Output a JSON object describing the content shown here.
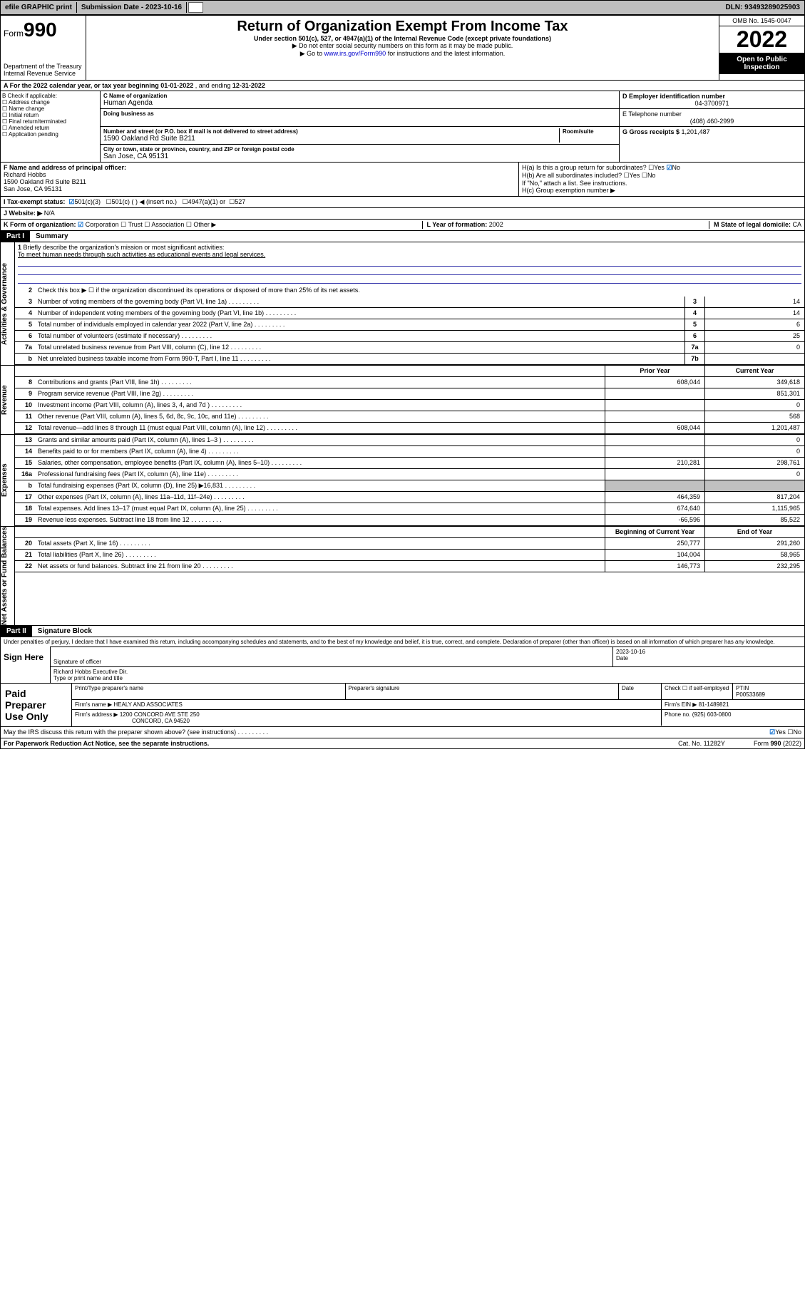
{
  "topbar": {
    "efile": "efile GRAPHIC print",
    "subdate_label": "Submission Date - ",
    "subdate": "2023-10-16",
    "dln": "DLN: 93493289025903"
  },
  "header": {
    "form_label": "Form",
    "form_num": "990",
    "dept": "Department of the Treasury",
    "irs": "Internal Revenue Service",
    "title": "Return of Organization Exempt From Income Tax",
    "subtitle": "Under section 501(c), 527, or 4947(a)(1) of the Internal Revenue Code (except private foundations)",
    "note1": "▶ Do not enter social security numbers on this form as it may be made public.",
    "note2_pre": "▶ Go to ",
    "note2_link": "www.irs.gov/Form990",
    "note2_post": " for instructions and the latest information.",
    "omb": "OMB No. 1545-0047",
    "year": "2022",
    "open": "Open to Public Inspection"
  },
  "period": {
    "a": "A For the 2022 calendar year, or tax year beginning ",
    "begin": "01-01-2022",
    "mid": " , and ending ",
    "end": "12-31-2022"
  },
  "blockB": {
    "title": "B Check if applicable:",
    "items": [
      "Address change",
      "Name change",
      "Initial return",
      "Final return/terminated",
      "Amended return",
      "Application pending"
    ]
  },
  "blockC": {
    "name_label": "C Name of organization",
    "name": "Human Agenda",
    "dba_label": "Doing business as",
    "addr_label": "Number and street (or P.O. box if mail is not delivered to street address)",
    "room_label": "Room/suite",
    "addr": "1590 Oakland Rd Suite B211",
    "city_label": "City or town, state or province, country, and ZIP or foreign postal code",
    "city": "San Jose, CA  95131"
  },
  "blockDE": {
    "d_label": "D Employer identification number",
    "d": "04-3700971",
    "e_label": "E Telephone number",
    "e": "(408) 460-2999",
    "g_label": "G Gross receipts $ ",
    "g": "1,201,487"
  },
  "blockF": {
    "label": "F Name and address of principal officer:",
    "name": "Richard Hobbs",
    "addr1": "1590 Oakland Rd Suite B211",
    "addr2": "San Jose, CA  95131"
  },
  "blockH": {
    "a": "H(a)  Is this a group return for subordinates?",
    "a_yes": "Yes",
    "a_no": "No",
    "b": "H(b)  Are all subordinates included?",
    "b_yes": "Yes",
    "b_no": "No",
    "b_note": "If \"No,\" attach a list. See instructions.",
    "c": "H(c)  Group exemption number ▶"
  },
  "status": {
    "i": "I  Tax-exempt status:",
    "c3": "501(c)(3)",
    "c": "501(c) (   ) ◀ (insert no.)",
    "a4947": "4947(a)(1) or",
    "s527": "527"
  },
  "web": {
    "j": "J  Website: ▶",
    "val": "N/A"
  },
  "korg": {
    "k": "K Form of organization:",
    "corp": "Corporation",
    "trust": "Trust",
    "assoc": "Association",
    "other": "Other ▶",
    "l": "L Year of formation: ",
    "l_val": "2002",
    "m": "M State of legal domicile: ",
    "m_val": "CA"
  },
  "part1": {
    "hdr": "Part I",
    "title": "Summary",
    "q1": "Briefly describe the organization's mission or most significant activities:",
    "q1_ans": "To meet human needs through such activities as educational events and legal services.",
    "q2": "Check this box ▶ ☐  if the organization discontinued its operations or disposed of more than 25% of its net assets.",
    "vtab_ag": "Activities & Governance",
    "vtab_rev": "Revenue",
    "vtab_exp": "Expenses",
    "vtab_na": "Net Assets or Fund Balances",
    "prior_hdr": "Prior Year",
    "curr_hdr": "Current Year",
    "boc_hdr": "Beginning of Current Year",
    "eoy_hdr": "End of Year",
    "rows_ag": [
      {
        "n": "3",
        "d": "Number of voting members of the governing body (Part VI, line 1a)",
        "ln": "3",
        "v": "14"
      },
      {
        "n": "4",
        "d": "Number of independent voting members of the governing body (Part VI, line 1b)",
        "ln": "4",
        "v": "14"
      },
      {
        "n": "5",
        "d": "Total number of individuals employed in calendar year 2022 (Part V, line 2a)",
        "ln": "5",
        "v": "6"
      },
      {
        "n": "6",
        "d": "Total number of volunteers (estimate if necessary)",
        "ln": "6",
        "v": "25"
      },
      {
        "n": "7a",
        "d": "Total unrelated business revenue from Part VIII, column (C), line 12",
        "ln": "7a",
        "v": "0"
      },
      {
        "n": "b",
        "d": "Net unrelated business taxable income from Form 990-T, Part I, line 11",
        "ln": "7b",
        "v": ""
      }
    ],
    "rows_rev": [
      {
        "n": "8",
        "d": "Contributions and grants (Part VIII, line 1h)",
        "p": "608,044",
        "c": "349,618"
      },
      {
        "n": "9",
        "d": "Program service revenue (Part VIII, line 2g)",
        "p": "",
        "c": "851,301"
      },
      {
        "n": "10",
        "d": "Investment income (Part VIII, column (A), lines 3, 4, and 7d )",
        "p": "",
        "c": "0"
      },
      {
        "n": "11",
        "d": "Other revenue (Part VIII, column (A), lines 5, 6d, 8c, 9c, 10c, and 11e)",
        "p": "",
        "c": "568"
      },
      {
        "n": "12",
        "d": "Total revenue—add lines 8 through 11 (must equal Part VIII, column (A), line 12)",
        "p": "608,044",
        "c": "1,201,487"
      }
    ],
    "rows_exp": [
      {
        "n": "13",
        "d": "Grants and similar amounts paid (Part IX, column (A), lines 1–3 )",
        "p": "",
        "c": "0"
      },
      {
        "n": "14",
        "d": "Benefits paid to or for members (Part IX, column (A), line 4)",
        "p": "",
        "c": "0"
      },
      {
        "n": "15",
        "d": "Salaries, other compensation, employee benefits (Part IX, column (A), lines 5–10)",
        "p": "210,281",
        "c": "298,761"
      },
      {
        "n": "16a",
        "d": "Professional fundraising fees (Part IX, column (A), line 11e)",
        "p": "",
        "c": "0"
      },
      {
        "n": "b",
        "d": "Total fundraising expenses (Part IX, column (D), line 25) ▶16,831",
        "p": "shade",
        "c": "shade"
      },
      {
        "n": "17",
        "d": "Other expenses (Part IX, column (A), lines 11a–11d, 11f–24e)",
        "p": "464,359",
        "c": "817,204"
      },
      {
        "n": "18",
        "d": "Total expenses. Add lines 13–17 (must equal Part IX, column (A), line 25)",
        "p": "674,640",
        "c": "1,115,965"
      },
      {
        "n": "19",
        "d": "Revenue less expenses. Subtract line 18 from line 12",
        "p": "-66,596",
        "c": "85,522"
      }
    ],
    "rows_na": [
      {
        "n": "20",
        "d": "Total assets (Part X, line 16)",
        "p": "250,777",
        "c": "291,260"
      },
      {
        "n": "21",
        "d": "Total liabilities (Part X, line 26)",
        "p": "104,004",
        "c": "58,965"
      },
      {
        "n": "22",
        "d": "Net assets or fund balances. Subtract line 21 from line 20",
        "p": "146,773",
        "c": "232,295"
      }
    ]
  },
  "part2": {
    "hdr": "Part II",
    "title": "Signature Block",
    "decl": "Under penalties of perjury, I declare that I have examined this return, including accompanying schedules and statements, and to the best of my knowledge and belief, it is true, correct, and complete. Declaration of preparer (other than officer) is based on all information of which preparer has any knowledge.",
    "sign_here": "Sign Here",
    "sig_officer": "Signature of officer",
    "sig_date": "Date",
    "sig_date_val": "2023-10-16",
    "sig_name": "Richard Hobbs  Executive Dir.",
    "sig_name_label": "Type or print name and title",
    "prep_label": "Paid Preparer Use Only",
    "prep_name_label": "Print/Type preparer's name",
    "prep_sig_label": "Preparer's signature",
    "prep_date_label": "Date",
    "prep_check": "Check ☐ if self-employed",
    "ptin_label": "PTIN",
    "ptin": "P00533689",
    "firm_name_label": "Firm's name   ▶",
    "firm_name": "HEALY AND ASSOCIATES",
    "firm_ein_label": "Firm's EIN ▶",
    "firm_ein": "81-1489821",
    "firm_addr_label": "Firm's address ▶",
    "firm_addr": "1200 CONCORD AVE STE 250",
    "firm_city": "CONCORD, CA  94520",
    "phone_label": "Phone no.",
    "phone": "(925) 603-0800"
  },
  "footer": {
    "discuss": "May the IRS discuss this return with the preparer shown above? (see instructions)",
    "yes": "Yes",
    "no": "No",
    "pra": "For Paperwork Reduction Act Notice, see the separate instructions.",
    "cat": "Cat. No. 11282Y",
    "form": "Form 990 (2022)"
  }
}
